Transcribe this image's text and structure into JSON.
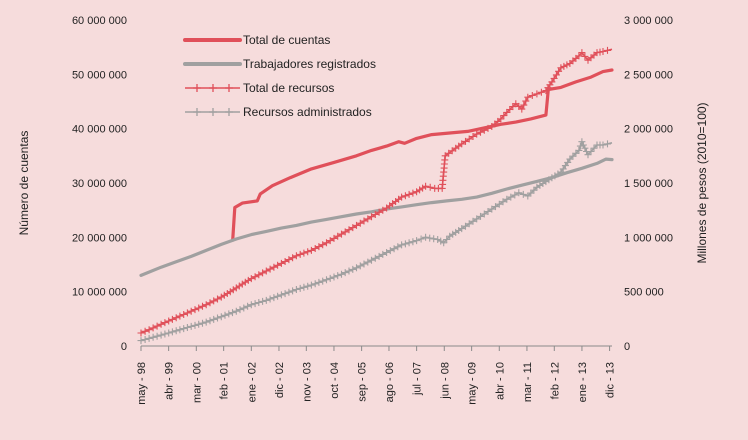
{
  "chart_data": {
    "type": "line",
    "background": "#f6dcdc",
    "ylabel_left": "Número de cuentas",
    "ylabel_right": "Millones de pesos (2010=100)",
    "ylim_left": [
      0,
      60000000
    ],
    "ylim_right": [
      0,
      3000000
    ],
    "yticks_left": [
      "0",
      "10 000 000",
      "20 000 000",
      "30 000 000",
      "40 000 000",
      "50 000 000",
      "60 000 000"
    ],
    "yticks_right": [
      "0",
      "500 000",
      "1 000 000",
      "1 500 000",
      "2 000 000",
      "2 500 000",
      "3 000 000"
    ],
    "x_start": 1998.33,
    "x_end": 2014.0,
    "xticks": [
      {
        "label": "may - 98",
        "x": 1998.33
      },
      {
        "label": "abr - 99",
        "x": 1999.25
      },
      {
        "label": "mar - 00",
        "x": 2000.17
      },
      {
        "label": "feb - 01",
        "x": 2001.08
      },
      {
        "label": "ene - 02",
        "x": 2002.0
      },
      {
        "label": "dic - 02",
        "x": 2002.92
      },
      {
        "label": "nov - 03",
        "x": 2003.83
      },
      {
        "label": "oct - 04",
        "x": 2004.75
      },
      {
        "label": "sep - 05",
        "x": 2005.67
      },
      {
        "label": "ago - 06",
        "x": 2006.58
      },
      {
        "label": "jul - 07",
        "x": 2007.5
      },
      {
        "label": "jun - 08",
        "x": 2008.42
      },
      {
        "label": "may - 09",
        "x": 2009.33
      },
      {
        "label": "abr - 10",
        "x": 2010.25
      },
      {
        "label": "mar - 11",
        "x": 2011.17
      },
      {
        "label": "feb - 12",
        "x": 2012.08
      },
      {
        "label": "ene - 13",
        "x": 2013.0
      },
      {
        "label": "dic - 13",
        "x": 2013.92
      }
    ],
    "legend_position": "top-left",
    "series": [
      {
        "name": "Total de cuentas",
        "axis": "left",
        "color": "#e0505a",
        "style": "thick",
        "points": [
          [
            1998.33,
            null
          ],
          [
            2001.38,
            19500000
          ],
          [
            2001.45,
            25500000
          ],
          [
            2001.7,
            26300000
          ],
          [
            2002.2,
            26700000
          ],
          [
            2002.3,
            28000000
          ],
          [
            2002.7,
            29500000
          ],
          [
            2003.3,
            31000000
          ],
          [
            2004.0,
            32600000
          ],
          [
            2004.75,
            33800000
          ],
          [
            2005.5,
            35000000
          ],
          [
            2006.0,
            36000000
          ],
          [
            2006.5,
            36800000
          ],
          [
            2006.9,
            37600000
          ],
          [
            2007.1,
            37300000
          ],
          [
            2007.5,
            38200000
          ],
          [
            2008.0,
            38900000
          ],
          [
            2008.6,
            39200000
          ],
          [
            2009.2,
            39500000
          ],
          [
            2009.8,
            40200000
          ],
          [
            2010.3,
            40800000
          ],
          [
            2010.8,
            41200000
          ],
          [
            2011.3,
            41800000
          ],
          [
            2011.8,
            42500000
          ],
          [
            2011.88,
            47200000
          ],
          [
            2012.3,
            47600000
          ],
          [
            2012.8,
            48600000
          ],
          [
            2013.3,
            49500000
          ],
          [
            2013.7,
            50500000
          ],
          [
            2014.0,
            50800000
          ]
        ]
      },
      {
        "name": "Trabajadores registrados",
        "axis": "left",
        "color": "#a0a0a0",
        "style": "thick",
        "points": [
          [
            1998.33,
            13000000
          ],
          [
            1999.0,
            14500000
          ],
          [
            1999.5,
            15500000
          ],
          [
            2000.0,
            16500000
          ],
          [
            2000.5,
            17600000
          ],
          [
            2001.0,
            18700000
          ],
          [
            2001.5,
            19700000
          ],
          [
            2002.0,
            20500000
          ],
          [
            2002.5,
            21100000
          ],
          [
            2003.0,
            21700000
          ],
          [
            2003.5,
            22200000
          ],
          [
            2004.0,
            22800000
          ],
          [
            2004.5,
            23300000
          ],
          [
            2005.0,
            23800000
          ],
          [
            2005.5,
            24300000
          ],
          [
            2006.0,
            24700000
          ],
          [
            2006.5,
            25200000
          ],
          [
            2007.0,
            25600000
          ],
          [
            2007.5,
            26000000
          ],
          [
            2008.0,
            26400000
          ],
          [
            2008.5,
            26700000
          ],
          [
            2009.0,
            27000000
          ],
          [
            2009.5,
            27400000
          ],
          [
            2010.0,
            28100000
          ],
          [
            2010.5,
            28900000
          ],
          [
            2011.0,
            29600000
          ],
          [
            2011.5,
            30300000
          ],
          [
            2012.0,
            31000000
          ],
          [
            2012.5,
            31900000
          ],
          [
            2013.0,
            32700000
          ],
          [
            2013.5,
            33600000
          ],
          [
            2013.8,
            34400000
          ],
          [
            2014.0,
            34300000
          ]
        ]
      },
      {
        "name": "Total de recursos",
        "axis": "right",
        "color": "#e0505a",
        "style": "markers",
        "points": [
          [
            1998.33,
            120000
          ],
          [
            1998.6,
            150000
          ],
          [
            1999.0,
            200000
          ],
          [
            1999.5,
            260000
          ],
          [
            2000.0,
            320000
          ],
          [
            2000.5,
            380000
          ],
          [
            2001.0,
            450000
          ],
          [
            2001.3,
            500000
          ],
          [
            2001.7,
            570000
          ],
          [
            2002.0,
            620000
          ],
          [
            2002.5,
            690000
          ],
          [
            2003.0,
            760000
          ],
          [
            2003.5,
            830000
          ],
          [
            2004.0,
            880000
          ],
          [
            2004.5,
            950000
          ],
          [
            2005.0,
            1030000
          ],
          [
            2005.5,
            1110000
          ],
          [
            2006.0,
            1190000
          ],
          [
            2006.5,
            1270000
          ],
          [
            2006.8,
            1330000
          ],
          [
            2007.0,
            1370000
          ],
          [
            2007.5,
            1420000
          ],
          [
            2007.8,
            1470000
          ],
          [
            2008.1,
            1450000
          ],
          [
            2008.35,
            1450000
          ],
          [
            2008.45,
            1750000
          ],
          [
            2008.8,
            1820000
          ],
          [
            2009.0,
            1860000
          ],
          [
            2009.5,
            1950000
          ],
          [
            2010.0,
            2020000
          ],
          [
            2010.3,
            2090000
          ],
          [
            2010.5,
            2150000
          ],
          [
            2010.8,
            2230000
          ],
          [
            2011.0,
            2180000
          ],
          [
            2011.2,
            2290000
          ],
          [
            2011.5,
            2320000
          ],
          [
            2011.8,
            2350000
          ],
          [
            2012.0,
            2430000
          ],
          [
            2012.3,
            2560000
          ],
          [
            2012.6,
            2600000
          ],
          [
            2012.9,
            2670000
          ],
          [
            2013.0,
            2700000
          ],
          [
            2013.2,
            2630000
          ],
          [
            2013.5,
            2700000
          ],
          [
            2013.7,
            2710000
          ],
          [
            2014.0,
            2730000
          ]
        ]
      },
      {
        "name": "Recursos administrados",
        "axis": "right",
        "color": "#a0a0a0",
        "style": "markers",
        "points": [
          [
            1998.33,
            50000
          ],
          [
            1998.6,
            70000
          ],
          [
            1999.0,
            100000
          ],
          [
            1999.5,
            140000
          ],
          [
            2000.0,
            180000
          ],
          [
            2000.5,
            220000
          ],
          [
            2001.0,
            270000
          ],
          [
            2001.5,
            320000
          ],
          [
            2002.0,
            380000
          ],
          [
            2002.5,
            420000
          ],
          [
            2003.0,
            470000
          ],
          [
            2003.5,
            520000
          ],
          [
            2004.0,
            560000
          ],
          [
            2004.5,
            610000
          ],
          [
            2005.0,
            660000
          ],
          [
            2005.5,
            720000
          ],
          [
            2006.0,
            790000
          ],
          [
            2006.5,
            860000
          ],
          [
            2007.0,
            930000
          ],
          [
            2007.5,
            970000
          ],
          [
            2007.8,
            1000000
          ],
          [
            2008.2,
            980000
          ],
          [
            2008.4,
            950000
          ],
          [
            2008.6,
            1010000
          ],
          [
            2009.0,
            1080000
          ],
          [
            2009.5,
            1170000
          ],
          [
            2010.0,
            1260000
          ],
          [
            2010.5,
            1350000
          ],
          [
            2010.9,
            1410000
          ],
          [
            2011.2,
            1380000
          ],
          [
            2011.5,
            1460000
          ],
          [
            2011.9,
            1530000
          ],
          [
            2012.3,
            1600000
          ],
          [
            2012.6,
            1720000
          ],
          [
            2012.9,
            1800000
          ],
          [
            2013.0,
            1880000
          ],
          [
            2013.2,
            1760000
          ],
          [
            2013.5,
            1850000
          ],
          [
            2013.7,
            1850000
          ],
          [
            2014.0,
            1870000
          ]
        ]
      }
    ]
  }
}
